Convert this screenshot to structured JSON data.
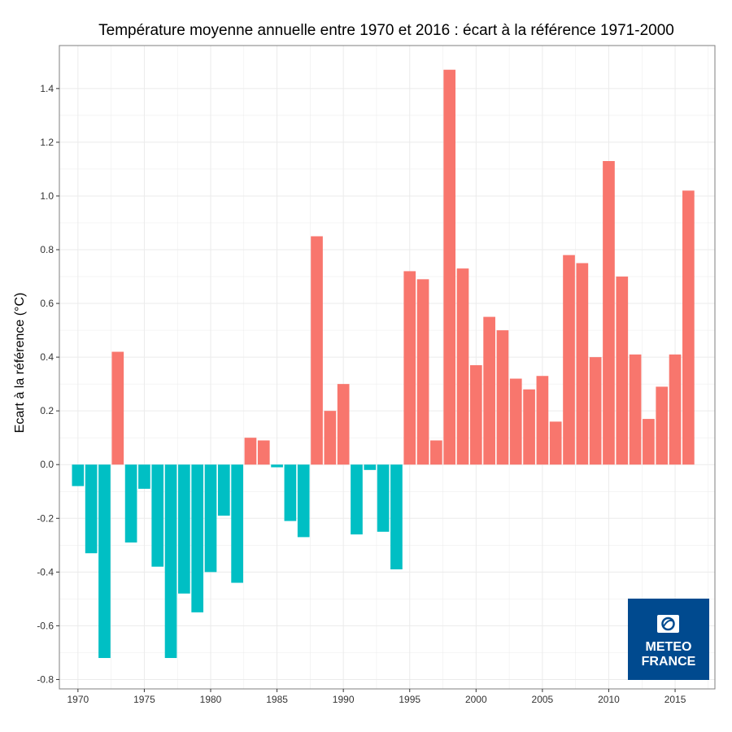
{
  "chart_data": {
    "type": "bar",
    "title": "Température moyenne annuelle entre 1970 et 2016 : écart à la référence 1971-2000",
    "xlabel": "",
    "ylabel": "Ecart à la référence (°C)",
    "x": [
      1970,
      1971,
      1972,
      1973,
      1974,
      1975,
      1976,
      1977,
      1978,
      1979,
      1980,
      1981,
      1982,
      1983,
      1984,
      1985,
      1986,
      1987,
      1988,
      1989,
      1990,
      1991,
      1992,
      1993,
      1994,
      1995,
      1996,
      1997,
      1998,
      1999,
      2000,
      2001,
      2002,
      2003,
      2004,
      2005,
      2006,
      2007,
      2008,
      2009,
      2010,
      2011,
      2012,
      2013,
      2014,
      2015,
      2016
    ],
    "values": [
      -0.08,
      -0.33,
      -0.72,
      0.42,
      -0.29,
      -0.09,
      -0.38,
      -0.72,
      -0.48,
      -0.55,
      -0.4,
      -0.19,
      -0.44,
      0.1,
      0.09,
      -0.01,
      -0.21,
      -0.27,
      0.85,
      0.2,
      0.3,
      -0.26,
      -0.02,
      -0.25,
      -0.39,
      0.72,
      0.69,
      0.09,
      1.47,
      0.73,
      0.37,
      0.55,
      0.5,
      0.32,
      0.28,
      0.33,
      0.16,
      0.78,
      0.75,
      0.4,
      1.13,
      0.7,
      0.41,
      0.17,
      0.29,
      0.41,
      1.02
    ],
    "xticks": [
      1970,
      1975,
      1980,
      1985,
      1990,
      1995,
      2000,
      2005,
      2010,
      2015
    ],
    "yticks": [
      -0.8,
      -0.6,
      -0.4,
      -0.2,
      0.0,
      0.2,
      0.4,
      0.6,
      0.8,
      1.0,
      1.2,
      1.4
    ],
    "ytick_labels": [
      "-0.8",
      "-0.6",
      "-0.4",
      "-0.2",
      "0.0",
      "0.2",
      "0.4",
      "0.6",
      "0.8",
      "1.0",
      "1.2",
      "1.4"
    ],
    "xlim": [
      1968.6,
      2018.0
    ],
    "ylim": [
      -0.835,
      1.56
    ],
    "grid": true,
    "colors": {
      "positive": "#f8766d",
      "negative": "#00bfc4",
      "grid": "#ebebeb",
      "panel_border": "#7f7f7f"
    }
  },
  "logo": {
    "line1": "METEO",
    "line2": "FRANCE",
    "background": "#004a8f",
    "icon": "meteo-france-emblem-icon"
  }
}
